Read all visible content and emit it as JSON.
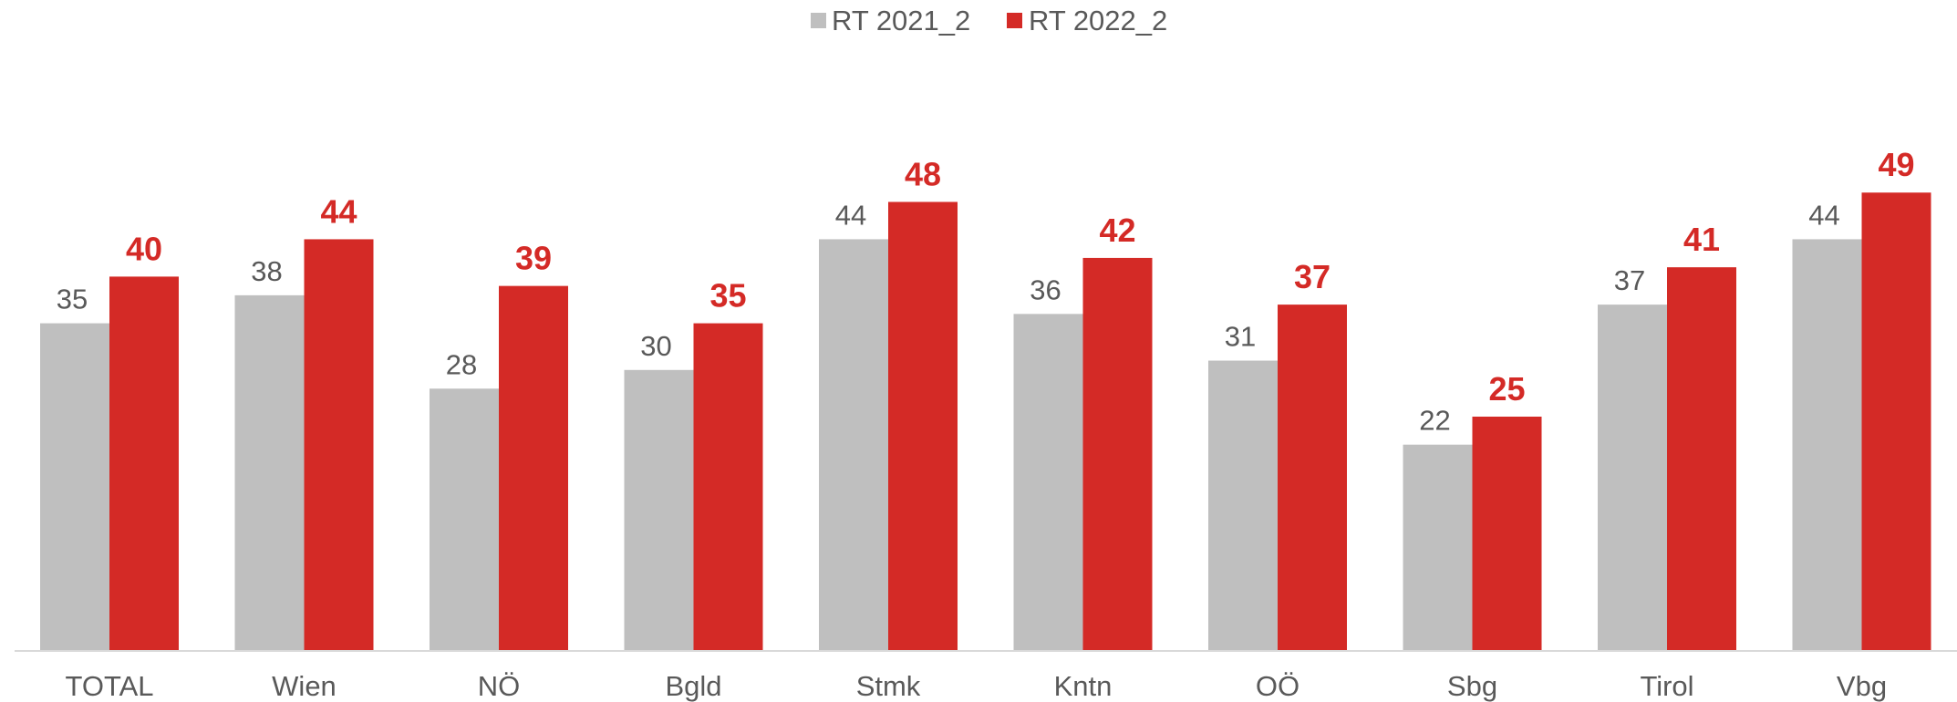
{
  "chart_data": {
    "type": "bar",
    "categories": [
      "TOTAL",
      "Wien",
      "NÖ",
      "Bgld",
      "Stmk",
      "Kntn",
      "OÖ",
      "Sbg",
      "Tirol",
      "Vbg"
    ],
    "series": [
      {
        "name": "RT 2021_2",
        "color": "#bfbfbf",
        "values": [
          35,
          38,
          28,
          30,
          44,
          36,
          31,
          22,
          37,
          44
        ]
      },
      {
        "name": "RT 2022_2",
        "color": "#d42a26",
        "values": [
          40,
          44,
          39,
          35,
          48,
          42,
          37,
          25,
          41,
          49
        ]
      }
    ],
    "ylim": [
      0,
      50
    ],
    "grid": false,
    "legend_position": "top-center",
    "data_labels": true,
    "axis_line_color": "#d9d9d9"
  }
}
